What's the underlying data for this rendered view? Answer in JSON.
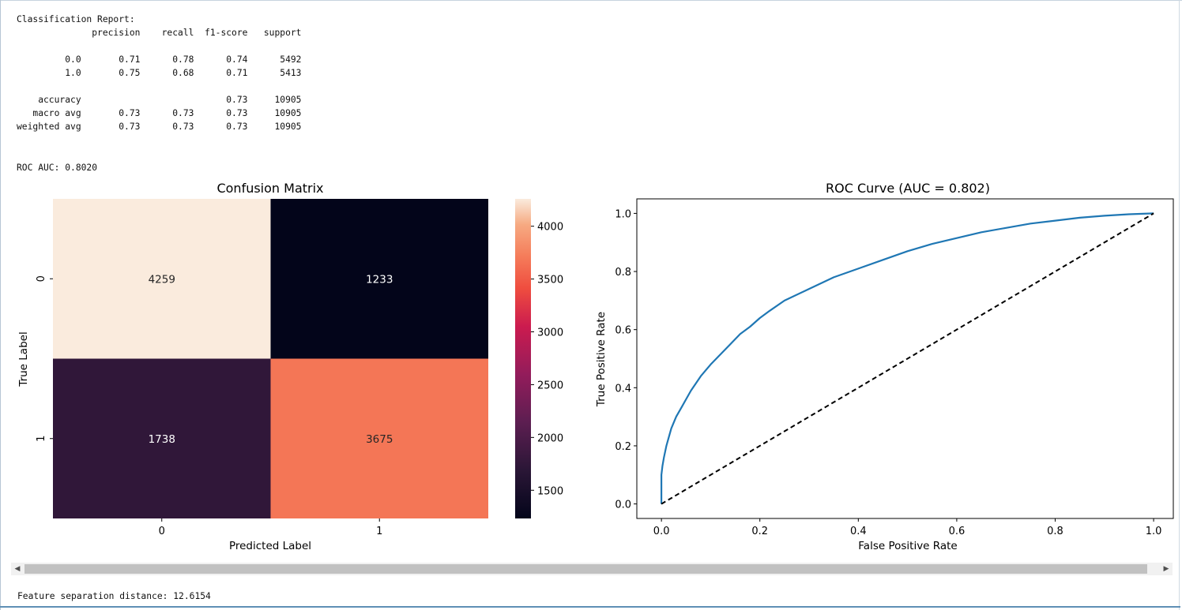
{
  "report": {
    "title": "Classification Report:",
    "columns": [
      "precision",
      "recall",
      "f1-score",
      "support"
    ],
    "rows": [
      {
        "label": "0.0",
        "precision": "0.71",
        "recall": "0.78",
        "f1": "0.74",
        "support": "5492"
      },
      {
        "label": "1.0",
        "precision": "0.75",
        "recall": "0.68",
        "f1": "0.71",
        "support": "5413"
      },
      {
        "label": "accuracy",
        "precision": "",
        "recall": "",
        "f1": "0.73",
        "support": "10905"
      },
      {
        "label": "macro avg",
        "precision": "0.73",
        "recall": "0.73",
        "f1": "0.73",
        "support": "10905"
      },
      {
        "label": "weighted avg",
        "precision": "0.73",
        "recall": "0.73",
        "f1": "0.73",
        "support": "10905"
      }
    ]
  },
  "roc_auc_text": "ROC AUC: 0.8020",
  "footer_text": "Feature separation distance: 12.6154",
  "scrollbar": {
    "left_arrow": "◀",
    "right_arrow": "▶"
  },
  "chart_data": [
    {
      "type": "heatmap",
      "title": "Confusion Matrix",
      "xlabel": "Predicted Label",
      "ylabel": "True Label",
      "x_categories": [
        "0",
        "1"
      ],
      "y_categories": [
        "0",
        "1"
      ],
      "values": [
        [
          4259,
          1233
        ],
        [
          1738,
          3675
        ]
      ],
      "colorbar": {
        "ticks": [
          1500,
          2000,
          2500,
          3000,
          3500,
          4000
        ],
        "range": [
          1233,
          4259
        ],
        "colormap": "rocket"
      }
    },
    {
      "type": "line",
      "title": "ROC Curve (AUC = 0.802)",
      "xlabel": "False Positive Rate",
      "ylabel": "True Positive Rate",
      "xlim": [
        -0.05,
        1.04
      ],
      "ylim": [
        -0.05,
        1.05
      ],
      "xticks": [
        "0.0",
        "0.2",
        "0.4",
        "0.6",
        "0.8",
        "1.0"
      ],
      "yticks": [
        "0.0",
        "0.2",
        "0.4",
        "0.6",
        "0.8",
        "1.0"
      ],
      "series": [
        {
          "color": "#1f77b4",
          "x": [
            0,
            0.0,
            0.002,
            0.005,
            0.01,
            0.015,
            0.02,
            0.03,
            0.04,
            0.05,
            0.06,
            0.07,
            0.08,
            0.1,
            0.12,
            0.14,
            0.16,
            0.18,
            0.2,
            0.22,
            0.25,
            0.3,
            0.35,
            0.4,
            0.45,
            0.5,
            0.55,
            0.6,
            0.65,
            0.7,
            0.75,
            0.8,
            0.85,
            0.9,
            0.95,
            1.0
          ],
          "y": [
            0,
            0.1,
            0.13,
            0.16,
            0.2,
            0.23,
            0.26,
            0.3,
            0.33,
            0.36,
            0.39,
            0.415,
            0.44,
            0.48,
            0.515,
            0.55,
            0.585,
            0.61,
            0.64,
            0.665,
            0.7,
            0.74,
            0.78,
            0.81,
            0.84,
            0.87,
            0.895,
            0.915,
            0.935,
            0.95,
            0.965,
            0.975,
            0.985,
            0.992,
            0.997,
            1.0
          ]
        },
        {
          "color": "#000000",
          "dashed": true,
          "x": [
            0,
            1
          ],
          "y": [
            0,
            1
          ]
        }
      ]
    }
  ]
}
